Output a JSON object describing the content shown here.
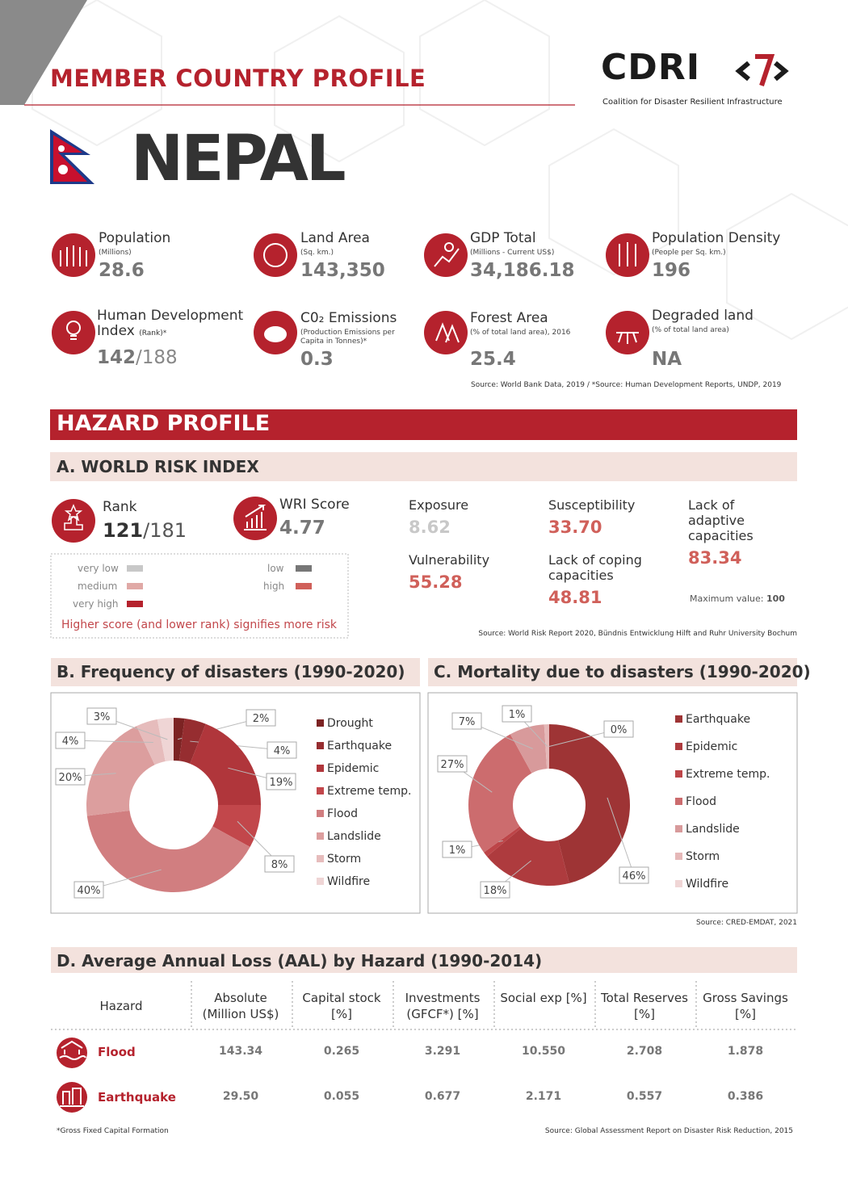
{
  "header": {
    "title": "MEMBER COUNTRY PROFILE",
    "logo": "CDRI",
    "logo_subtitle": "Coalition for Disaster Resilient Infrastructure"
  },
  "country": "NEPAL",
  "indicators": [
    {
      "label": "Population",
      "unit": "(Millions)",
      "value": "28.6"
    },
    {
      "label": "Land Area",
      "unit": "(Sq. km.)",
      "value": "143,350"
    },
    {
      "label": "GDP Total",
      "unit": "(Millions - Current US$)",
      "value": "34,186.18"
    },
    {
      "label": "Population Density",
      "unit": "(People per Sq. km.)",
      "value": "196"
    },
    {
      "label": "Human Development Index",
      "unit": "(Rank)*",
      "value": "142",
      "suffix": "/188"
    },
    {
      "label": "C0₂ Emissions",
      "unit": "(Production Emissions per Capita in Tonnes)*",
      "value": "0.3"
    },
    {
      "label": "Forest Area",
      "unit": "(% of total land area), 2016",
      "value": "25.4"
    },
    {
      "label": "Degraded land",
      "unit": "(% of total land area)",
      "value": "NA"
    }
  ],
  "indicators_source": "Source: World Bank Data, 2019 / *Source: Human Development Reports, UNDP, 2019",
  "hazard_title": "HAZARD PROFILE",
  "wri": {
    "title": "A. WORLD RISK INDEX",
    "rank_label": "Rank",
    "rank": "121",
    "rank_total": "/181",
    "score_label": "WRI Score",
    "score": "4.77",
    "legend": [
      "very low",
      "low",
      "medium",
      "high",
      "very high"
    ],
    "note": "Higher score (and lower rank) signifies more risk",
    "metrics": [
      {
        "label": "Exposure",
        "value": "8.62"
      },
      {
        "label": "Susceptibility",
        "value": "33.70"
      },
      {
        "label": "Lack of adaptive capacities",
        "value": "83.34"
      },
      {
        "label": "Vulnerability",
        "value": "55.28"
      },
      {
        "label": "Lack of coping capacities",
        "value": "48.81"
      }
    ],
    "max_label": "Maximum value:",
    "max_value": "100",
    "source": "Source: World Risk Report 2020, Bündnis Entwicklung Hilft and Ruhr University Bochum"
  },
  "chart_data": [
    {
      "type": "pie",
      "title": "B. Frequency of disasters (1990-2020)",
      "categories": [
        "Drought",
        "Earthquake",
        "Epidemic",
        "Extreme temp.",
        "Flood",
        "Landslide",
        "Storm",
        "Wildfire"
      ],
      "values": [
        2,
        4,
        19,
        8,
        40,
        20,
        4,
        3
      ],
      "value_labels": [
        "2%",
        "4%",
        "19%",
        "8%",
        "40%",
        "20%",
        "4%",
        "3%"
      ],
      "colors": [
        "#7c2323",
        "#962d30",
        "#b0363b",
        "#c2474b",
        "#d17e80",
        "#dc9e9e",
        "#e6bcbc",
        "#efd5d5"
      ]
    },
    {
      "type": "pie",
      "title": "C. Mortality due to disasters (1990-2020)",
      "categories": [
        "Earthquake",
        "Epidemic",
        "Extreme temp.",
        "Flood",
        "Landslide",
        "Storm",
        "Wildfire"
      ],
      "values": [
        46,
        18,
        1,
        27,
        7,
        1,
        0
      ],
      "value_labels": [
        "46%",
        "18%",
        "1%",
        "27%",
        "7%",
        "1%",
        "0%"
      ],
      "colors": [
        "#9e3435",
        "#ae3b3e",
        "#bd4548",
        "#cc6c6e",
        "#d89a9b",
        "#e5b8b8",
        "#f0d6d6"
      ]
    }
  ],
  "charts_source": "Source: CRED-EMDAT, 2021",
  "aal": {
    "title": "D. Average Annual Loss (AAL) by Hazard (1990-2014)",
    "headers": [
      "Hazard",
      "Absolute (Million US$)",
      "Capital stock [%]",
      "Investments (GFCF*) [%]",
      "Social exp [%]",
      "Total Reserves [%]",
      "Gross Savings [%]"
    ],
    "rows": [
      [
        "Flood",
        "143.34",
        "0.265",
        "3.291",
        "10.550",
        "2.708",
        "1.878"
      ],
      [
        "Earthquake",
        "29.50",
        "0.055",
        "0.677",
        "2.171",
        "0.557",
        "0.386"
      ]
    ],
    "footnote": "*Gross Fixed Capital Formation",
    "source": "Source: Global Assessment Report on Disaster Risk Reduction, 2015"
  }
}
